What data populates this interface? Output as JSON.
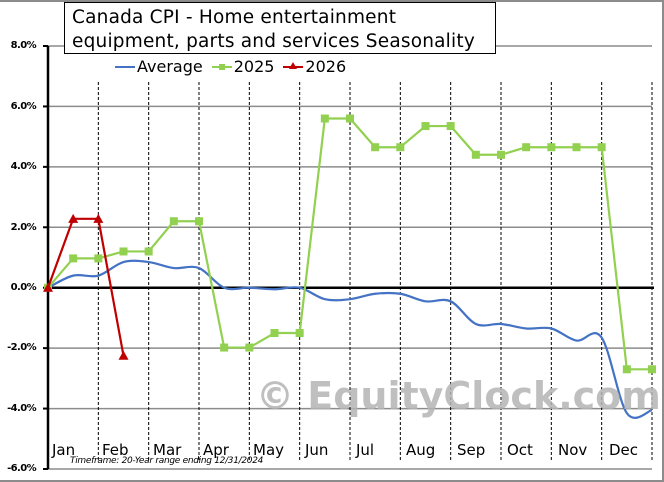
{
  "chart_data": {
    "type": "line",
    "title": "Canada CPI - Home entertainment equipment, parts and services Seasonality",
    "title_lines": [
      "Canada  CPI - Home  entertainment",
      "equipment,  parts  and  services  Seasonality"
    ],
    "xlabel": "",
    "ylabel": "",
    "ylim": [
      -6.0,
      8.0
    ],
    "y_ticks": [
      "8.0%",
      "6.0%",
      "4.0%",
      "2.0%",
      "0.0%",
      "-2.0%",
      "-4.0%",
      "-6.0%"
    ],
    "y_tick_values": [
      8,
      6,
      4,
      2,
      0,
      -2,
      -4,
      -6
    ],
    "categories": [
      "Jan",
      "Feb",
      "Mar",
      "Apr",
      "May",
      "Jun",
      "Jul",
      "Aug",
      "Sep",
      "Oct",
      "Nov",
      "Dec"
    ],
    "grid": true,
    "legend_position": "top",
    "x_points": [
      "Start",
      "Jan-mid",
      "Jan-end",
      "Feb-mid",
      "Feb-end",
      "Mar-mid",
      "Mar-end",
      "Apr-mid",
      "Apr-end",
      "May-mid",
      "May-end",
      "Jun-mid",
      "Jun-end",
      "Jul-mid",
      "Jul-end",
      "Aug-mid",
      "Aug-end",
      "Sep-mid",
      "Sep-end",
      "Oct-mid",
      "Oct-end",
      "Nov-mid",
      "Nov-end",
      "Dec-mid",
      "Dec-end"
    ],
    "series": [
      {
        "name": "Average",
        "color": "#4472c4",
        "marker": "none",
        "values": [
          0.0,
          0.4,
          0.4,
          0.85,
          0.85,
          0.65,
          0.65,
          0.0,
          0.0,
          -0.05,
          0.0,
          -0.38,
          -0.38,
          -0.2,
          -0.2,
          -0.45,
          -0.45,
          -1.2,
          -1.2,
          -1.35,
          -1.35,
          -1.75,
          -1.65,
          -4.15,
          -4.05
        ]
      },
      {
        "name": "2025",
        "color": "#92d050",
        "marker": "square",
        "values": [
          0.0,
          0.97,
          0.97,
          1.2,
          1.2,
          2.2,
          2.2,
          -1.98,
          -1.98,
          -1.5,
          -1.5,
          5.6,
          5.6,
          4.65,
          4.65,
          5.35,
          5.35,
          4.4,
          4.4,
          4.65,
          4.65,
          4.65,
          4.65,
          -2.7,
          -2.7
        ]
      },
      {
        "name": "2026",
        "color": "#c00000",
        "marker": "triangle",
        "values": [
          0.0,
          2.28,
          2.28,
          -2.25
        ]
      }
    ],
    "annotations": [
      "Timeframe: 20-Year range ending 12/31/2024",
      "© EquityClock.com"
    ]
  },
  "legend": {
    "average": "Average",
    "y2025": "2025",
    "y2026": "2026"
  },
  "footer": {
    "timeframe": "Timeframe: 20-Year range ending 12/31/2024"
  },
  "watermark": "© EquityClock.com"
}
